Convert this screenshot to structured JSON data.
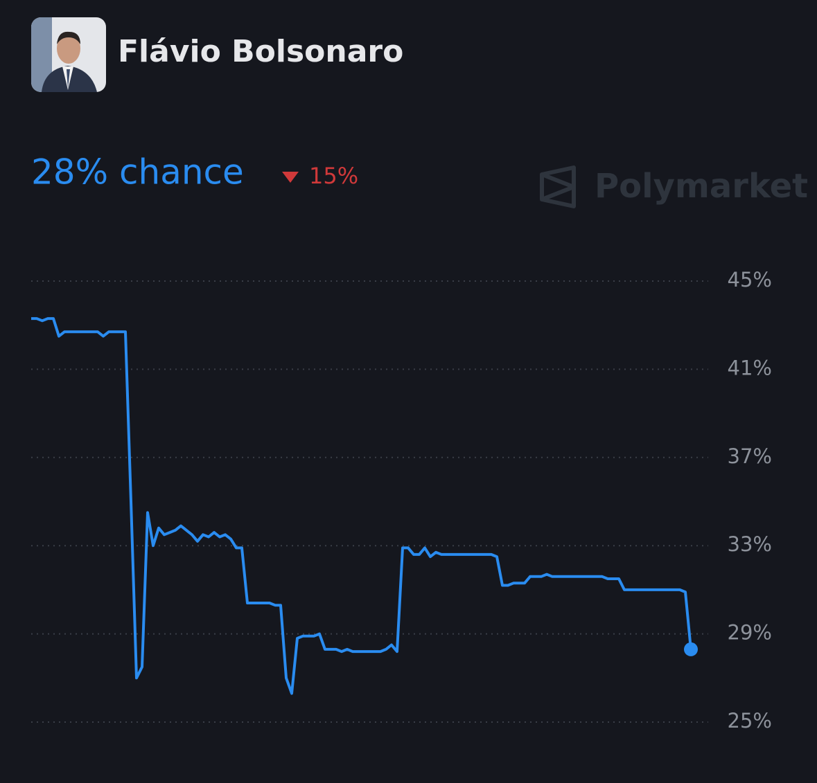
{
  "header": {
    "title": "Flávio Bolsonaro"
  },
  "chart_data": {
    "type": "line",
    "headline": "28% chance",
    "change": "15%",
    "watermark": "Polymarket",
    "color": "#2a8cf0",
    "grid": true,
    "ylim": [
      25,
      45
    ],
    "yticks": [
      {
        "value": 25,
        "label": "25%"
      },
      {
        "value": 29,
        "label": "29%"
      },
      {
        "value": 33,
        "label": "33%"
      },
      {
        "value": 37,
        "label": "37%"
      },
      {
        "value": 41,
        "label": "41%"
      },
      {
        "value": 45,
        "label": "45%"
      }
    ],
    "values": [
      43.3,
      43.3,
      43.2,
      43.3,
      43.3,
      42.5,
      42.7,
      42.7,
      42.7,
      42.7,
      42.7,
      42.7,
      42.7,
      42.5,
      42.7,
      42.7,
      42.7,
      42.7,
      35.0,
      27.0,
      27.5,
      34.5,
      33.0,
      33.8,
      33.5,
      33.6,
      33.7,
      33.9,
      33.7,
      33.5,
      33.2,
      33.5,
      33.4,
      33.6,
      33.4,
      33.5,
      33.3,
      32.9,
      32.9,
      30.4,
      30.4,
      30.4,
      30.4,
      30.4,
      30.3,
      30.3,
      27.0,
      26.3,
      28.8,
      28.9,
      28.9,
      28.9,
      29.0,
      28.3,
      28.3,
      28.3,
      28.2,
      28.3,
      28.2,
      28.2,
      28.2,
      28.2,
      28.2,
      28.2,
      28.3,
      28.5,
      28.2,
      32.9,
      32.9,
      32.6,
      32.6,
      32.9,
      32.5,
      32.7,
      32.6,
      32.6,
      32.6,
      32.6,
      32.6,
      32.6,
      32.6,
      32.6,
      32.6,
      32.6,
      32.5,
      31.2,
      31.2,
      31.3,
      31.3,
      31.3,
      31.6,
      31.6,
      31.6,
      31.7,
      31.6,
      31.6,
      31.6,
      31.6,
      31.6,
      31.6,
      31.6,
      31.6,
      31.6,
      31.6,
      31.5,
      31.5,
      31.5,
      31.0,
      31.0,
      31.0,
      31.0,
      31.0,
      31.0,
      31.0,
      31.0,
      31.0,
      31.0,
      31.0,
      30.9,
      28.3
    ]
  }
}
